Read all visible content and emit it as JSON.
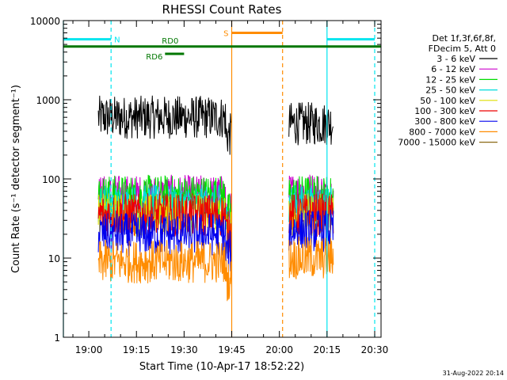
{
  "chart_data": {
    "type": "line",
    "title": "RHESSI Count Rates",
    "xlabel": "Start Time (10-Apr-17 18:52:22)",
    "ylabel": "Count Rate (s⁻¹ detector segment⁻¹)",
    "yscale": "log",
    "ylim": [
      1,
      10000
    ],
    "xlim": [
      "18:52",
      "20:32"
    ],
    "x_ticks": [
      "19:00",
      "19:15",
      "19:30",
      "19:45",
      "20:00",
      "20:15",
      "20:30"
    ],
    "y_ticks": [
      "1",
      "10",
      "100",
      "1000",
      "10000"
    ],
    "grid": false,
    "legend_position": "right",
    "legend_header": [
      "Det 1f,3f,6f,8f,",
      "FDecim 5, Att 0"
    ],
    "data_segments": [
      [
        "19:03",
        "19:45"
      ],
      [
        "20:03",
        "20:17"
      ]
    ],
    "series": [
      {
        "name": "3 - 6 keV",
        "color": "#000000",
        "level1": 600,
        "level2": 500
      },
      {
        "name": "6 - 12 keV",
        "color": "#cc00cc",
        "level1": 60,
        "level2": 65
      },
      {
        "name": "12 - 25 keV",
        "color": "#00dd00",
        "level1": 60,
        "level2": 60
      },
      {
        "name": "25 - 50 keV",
        "color": "#00dddd",
        "level1": 45,
        "level2": 45
      },
      {
        "name": "50 - 100 keV",
        "color": "#dddd00",
        "level1": 35,
        "level2": 35
      },
      {
        "name": "100 - 300 keV",
        "color": "#ee0000",
        "level1": 35,
        "level2": 35
      },
      {
        "name": "300 - 800 keV",
        "color": "#0000ee",
        "level1": 20,
        "level2": 22
      },
      {
        "name": "800 - 7000 keV",
        "color": "#ff8c00",
        "level1": 9,
        "level2": 10
      },
      {
        "name": "7000 - 15000 keV",
        "color": "#8b6914",
        "level1": null,
        "level2": null
      }
    ],
    "flags": [
      {
        "label": "N",
        "color": "#00e5ee",
        "spans": [
          [
            "18:52",
            "19:07"
          ],
          [
            "20:15",
            "20:30"
          ]
        ],
        "value": 5800
      },
      {
        "label": "S",
        "color": "#ff8c00",
        "spans": [
          [
            "19:45",
            "20:01"
          ]
        ],
        "value": 7000
      },
      {
        "label": "RD0",
        "color": "#007700",
        "spans": [
          [
            "18:52",
            "20:32"
          ]
        ],
        "value": 4700
      },
      {
        "label": "RD6",
        "color": "#007700",
        "spans": [
          [
            "19:24",
            "19:30"
          ]
        ],
        "value": 3800
      }
    ],
    "vlines": [
      {
        "time": "18:52",
        "color": "#00e5ee",
        "style": "solid"
      },
      {
        "time": "19:07",
        "color": "#00e5ee",
        "style": "dashed"
      },
      {
        "time": "19:45",
        "color": "#ff8c00",
        "style": "solid"
      },
      {
        "time": "20:01",
        "color": "#ff8c00",
        "style": "dashed"
      },
      {
        "time": "20:15",
        "color": "#00e5ee",
        "style": "solid"
      },
      {
        "time": "20:30",
        "color": "#00e5ee",
        "style": "dashed"
      }
    ]
  },
  "footer": {
    "date_stamp": "31-Aug-2022 20:14"
  }
}
